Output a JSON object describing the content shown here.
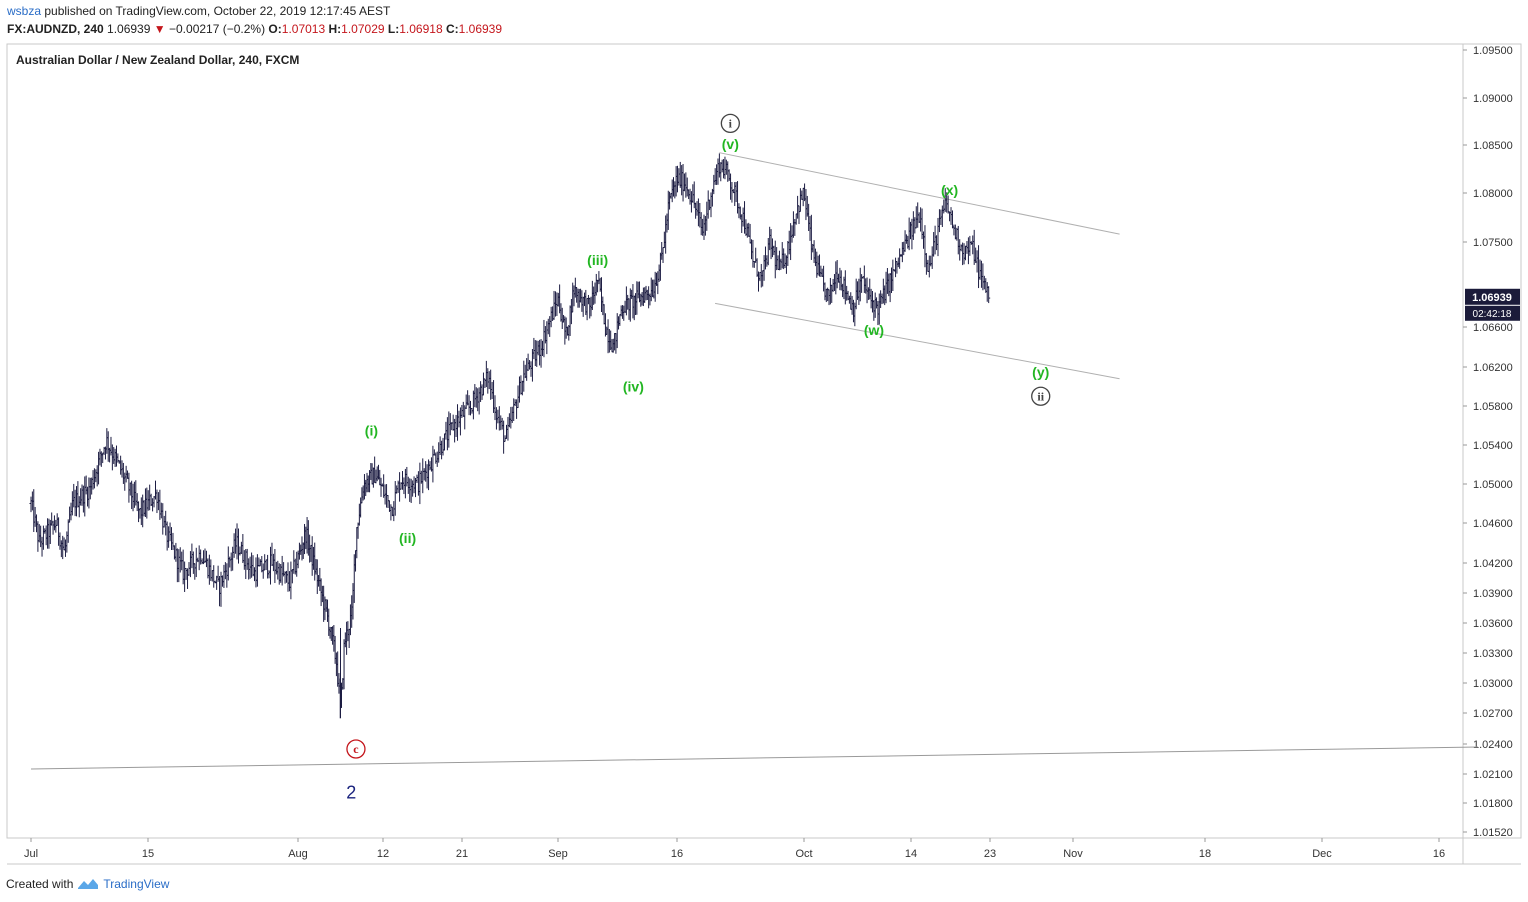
{
  "header": {
    "user": "wsbza",
    "published_text": "published on TradingView.com, October 22, 2019 12:17:45 AEST",
    "symbol": "FX:AUDNZD, 240",
    "last": "1.06939",
    "arrow": "▼",
    "change": "−0.00217 (−0.2%)",
    "o_label": "O:",
    "o_val": "1.07013",
    "h_label": "H:",
    "h_val": "1.07029",
    "l_label": "L:",
    "l_val": "1.06918",
    "c_label": "C:",
    "c_val": "1.06939"
  },
  "footer": {
    "created_with": "Created with",
    "brand": "TradingView"
  },
  "colors": {
    "candle": "#1c1c42",
    "wave_green": "#22b622",
    "wave_red": "#c4161c",
    "wave_blue": "#1a237e",
    "price_tag": "#1b1b3a"
  },
  "chart_data": {
    "type": "ohlc-bars",
    "title": "Australian Dollar / New Zealand Dollar, 240, FXCM",
    "y_ticks": [
      "1.09500",
      "1.09000",
      "1.08500",
      "1.08000",
      "1.07500",
      "1.06600",
      "1.06200",
      "1.05800",
      "1.05400",
      "1.05000",
      "1.04600",
      "1.04200",
      "1.03900",
      "1.03600",
      "1.03300",
      "1.03000",
      "1.02700",
      "1.02400",
      "1.02100",
      "1.01800",
      "1.01520"
    ],
    "x_ticks": [
      {
        "label": "Jul",
        "day": 0
      },
      {
        "label": "15",
        "day": 14
      },
      {
        "label": "Aug",
        "day": 31
      },
      {
        "label": "12",
        "day": 42
      },
      {
        "label": "21",
        "day": 51
      },
      {
        "label": "Sep",
        "day": 62
      },
      {
        "label": "16",
        "day": 77
      },
      {
        "label": "Oct",
        "day": 92
      },
      {
        "label": "14",
        "day": 105
      },
      {
        "label": "23",
        "day": 114
      },
      {
        "label": "Nov",
        "day": 123
      },
      {
        "label": "18",
        "day": 140
      },
      {
        "label": "Dec",
        "day": 153
      },
      {
        "label": "16",
        "day": 168
      }
    ],
    "last_price": "1.06939",
    "countdown": "02:42:18",
    "path": [
      [
        0,
        1.048
      ],
      [
        1,
        1.044
      ],
      [
        3,
        1.046
      ],
      [
        4,
        1.043
      ],
      [
        5,
        1.048
      ],
      [
        7,
        1.0495
      ],
      [
        8,
        1.052
      ],
      [
        9,
        1.0545
      ],
      [
        11,
        1.051
      ],
      [
        13,
        1.047
      ],
      [
        15,
        1.049
      ],
      [
        16,
        1.045
      ],
      [
        18,
        1.041
      ],
      [
        20,
        1.043
      ],
      [
        22,
        1.0395
      ],
      [
        24,
        1.044
      ],
      [
        26,
        1.041
      ],
      [
        28,
        1.042
      ],
      [
        30,
        1.04
      ],
      [
        32,
        1.045
      ],
      [
        34,
        1.039
      ],
      [
        35,
        1.036
      ],
      [
        36,
        1.032
      ],
      [
        36.5,
        1.027
      ],
      [
        37,
        1.034
      ],
      [
        38,
        1.037
      ],
      [
        38.5,
        1.045
      ],
      [
        39.5,
        1.05
      ],
      [
        41,
        1.051
      ],
      [
        43,
        1.0475
      ],
      [
        44,
        1.0505
      ],
      [
        46,
        1.05
      ],
      [
        48,
        1.053
      ],
      [
        50,
        1.056
      ],
      [
        52,
        1.058
      ],
      [
        54,
        1.061
      ],
      [
        55,
        1.057
      ],
      [
        56,
        1.0545
      ],
      [
        58,
        1.061
      ],
      [
        60,
        1.064
      ],
      [
        61,
        1.0665
      ],
      [
        62,
        1.069
      ],
      [
        63,
        1.065
      ],
      [
        64,
        1.07
      ],
      [
        66,
        1.068
      ],
      [
        67,
        1.071
      ],
      [
        68,
        1.066
      ],
      [
        69,
        1.064
      ],
      [
        70,
        1.068
      ],
      [
        72,
        1.069
      ],
      [
        74,
        1.07
      ],
      [
        75,
        1.073
      ],
      [
        76,
        1.079
      ],
      [
        77,
        1.0815
      ],
      [
        78,
        1.081
      ],
      [
        79,
        1.079
      ],
      [
        80,
        1.076
      ],
      [
        81,
        1.08
      ],
      [
        82,
        1.083
      ],
      [
        83,
        1.082
      ],
      [
        85,
        1.077
      ],
      [
        86,
        1.073
      ],
      [
        87,
        1.071
      ],
      [
        88,
        1.075
      ],
      [
        89,
        1.072
      ],
      [
        90,
        1.074
      ],
      [
        91,
        1.078
      ],
      [
        92,
        1.08
      ],
      [
        93,
        1.074
      ],
      [
        94,
        1.071
      ],
      [
        95,
        1.069
      ],
      [
        96,
        1.072
      ],
      [
        97,
        1.07
      ],
      [
        98,
        1.068
      ],
      [
        99,
        1.071
      ],
      [
        100,
        1.069
      ],
      [
        101,
        1.068
      ],
      [
        102,
        1.07
      ],
      [
        103,
        1.072
      ],
      [
        104,
        1.074
      ],
      [
        105,
        1.076
      ],
      [
        106,
        1.078
      ],
      [
        107,
        1.072
      ],
      [
        108,
        1.076
      ],
      [
        109,
        1.079
      ],
      [
        110,
        1.076
      ],
      [
        111,
        1.074
      ],
      [
        112,
        1.0745
      ],
      [
        113,
        1.071
      ],
      [
        114,
        1.0694
      ]
    ],
    "channel_upper": [
      [
        82,
        1.0842
      ],
      [
        129,
        1.0758
      ]
    ],
    "channel_lower": [
      [
        81.5,
        1.0685
      ],
      [
        129,
        1.0608
      ]
    ],
    "trendline": [
      [
        0,
        1.0215
      ],
      [
        173,
        1.0237
      ]
    ],
    "wave_labels": [
      {
        "text": "(i)",
        "day": 40.5,
        "price": 1.0555,
        "color": "green"
      },
      {
        "text": "(ii)",
        "day": 44.8,
        "price": 1.0445,
        "color": "green"
      },
      {
        "text": "(iii)",
        "day": 67,
        "price": 1.0731,
        "color": "green"
      },
      {
        "text": "(iv)",
        "day": 71.5,
        "price": 1.06,
        "color": "green"
      },
      {
        "text": "(v)",
        "day": 83.3,
        "price": 1.0851,
        "color": "green"
      },
      {
        "text": "i",
        "day": 83.3,
        "price": 1.0873,
        "color": "grey",
        "circled": true
      },
      {
        "text": "(x)",
        "day": 109.4,
        "price": 1.0803,
        "color": "green"
      },
      {
        "text": "(w)",
        "day": 100.5,
        "price": 1.0657,
        "color": "green"
      },
      {
        "text": "(y)",
        "day": 119.5,
        "price": 1.0615,
        "color": "green"
      },
      {
        "text": "ii",
        "day": 119.5,
        "price": 1.059,
        "color": "grey",
        "circled": true
      },
      {
        "text": "c",
        "day": 38.5,
        "price": 1.0235,
        "color": "red",
        "circled": true
      },
      {
        "text": "2",
        "day": 37.9,
        "price": 1.019,
        "color": "blue"
      }
    ]
  }
}
